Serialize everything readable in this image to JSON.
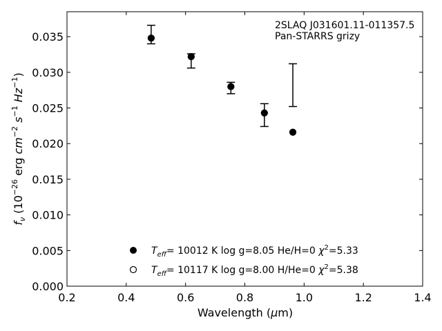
{
  "chart_data": {
    "type": "scatter",
    "title": "",
    "annotation": [
      "2SLAQ J031601.11-011357.5",
      "Pan-STARRS grizy"
    ],
    "xlabel": "Wavelength (μm)",
    "ylabel": "f_ν (10^-26 erg cm^-2 s^-1 Hz^-1)",
    "xlim": [
      0.2,
      1.4
    ],
    "ylim": [
      0.0,
      0.0385
    ],
    "xticks": [
      "0.2",
      "0.4",
      "0.6",
      "0.8",
      "1.0",
      "1.2",
      "1.4"
    ],
    "yticks": [
      "0.000",
      "0.005",
      "0.010",
      "0.015",
      "0.020",
      "0.025",
      "0.030",
      "0.035"
    ],
    "grid": false,
    "legend_position": "lower-center",
    "observed": {
      "x": [
        0.484,
        0.619,
        0.753,
        0.866,
        0.962
      ],
      "y": [
        0.0353,
        0.0316,
        0.0278,
        0.024,
        0.0282
      ],
      "yerr": [
        0.0013,
        0.001,
        0.0008,
        0.0016,
        0.003
      ]
    },
    "series": [
      {
        "name": "T_eff= 10012 K  log g=8.05  He/H=0  χ²=5.33",
        "marker": "filled",
        "x": [
          0.484,
          0.619,
          0.753,
          0.866,
          0.962
        ],
        "y": [
          0.0348,
          0.0322,
          0.028,
          0.0243,
          0.0216
        ]
      },
      {
        "name": "T_eff= 10117 K  log g=8.00  H/He=0  χ²=5.38",
        "marker": "open",
        "x": [
          0.484,
          0.619,
          0.753,
          0.866,
          0.962
        ],
        "y": [
          0.0348,
          0.0322,
          0.028,
          0.0243,
          0.0216
        ]
      }
    ]
  }
}
